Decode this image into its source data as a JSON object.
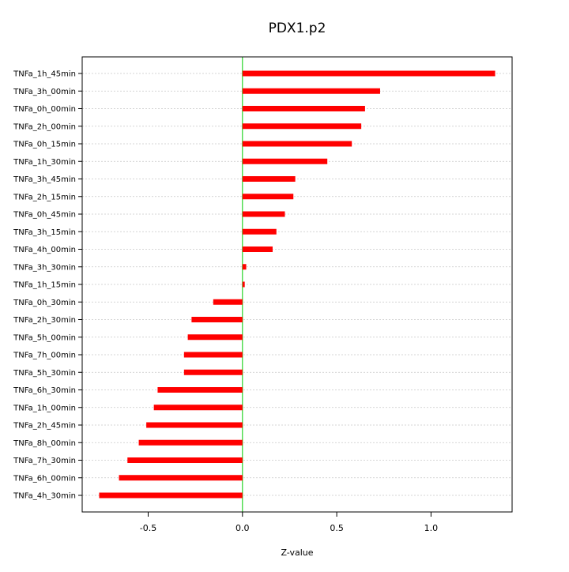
{
  "chart_data": {
    "type": "bar",
    "orientation": "horizontal",
    "title": "PDX1.p2",
    "xlabel": "Z-value",
    "ylabel": "",
    "xlim": [
      -0.85,
      1.43
    ],
    "x_ticks": [
      -0.5,
      0.0,
      0.5,
      1.0
    ],
    "x_tick_labels": [
      "-0.5",
      "0.0",
      "0.5",
      "1.0"
    ],
    "grid": true,
    "zero_line": true,
    "colors": {
      "bar": "#ff0000",
      "zero_line": "#00cc00",
      "grid": "#c8c8c8",
      "axis": "#000000"
    },
    "categories": [
      "TNFa_1h_45min",
      "TNFa_3h_00min",
      "TNFa_0h_00min",
      "TNFa_2h_00min",
      "TNFa_0h_15min",
      "TNFa_1h_30min",
      "TNFa_3h_45min",
      "TNFa_2h_15min",
      "TNFa_0h_45min",
      "TNFa_3h_15min",
      "TNFa_4h_00min",
      "TNFa_3h_30min",
      "TNFa_1h_15min",
      "TNFa_0h_30min",
      "TNFa_2h_30min",
      "TNFa_5h_00min",
      "TNFa_7h_00min",
      "TNFa_5h_30min",
      "TNFa_6h_30min",
      "TNFa_1h_00min",
      "TNFa_2h_45min",
      "TNFa_8h_00min",
      "TNFa_7h_30min",
      "TNFa_6h_00min",
      "TNFa_4h_30min"
    ],
    "values": [
      1.34,
      0.73,
      0.65,
      0.63,
      0.58,
      0.45,
      0.28,
      0.27,
      0.225,
      0.18,
      0.16,
      0.02,
      0.012,
      -0.155,
      -0.27,
      -0.29,
      -0.31,
      -0.31,
      -0.45,
      -0.47,
      -0.51,
      -0.55,
      -0.61,
      -0.655,
      -0.76
    ]
  }
}
